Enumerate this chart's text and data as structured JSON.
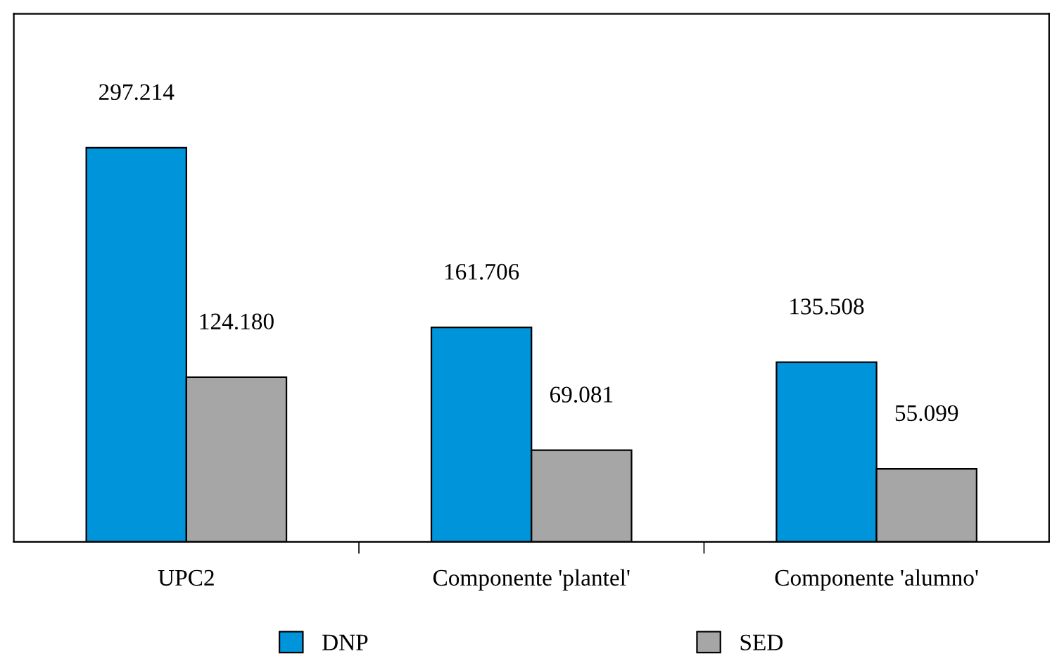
{
  "chart_data": {
    "type": "bar",
    "categories": [
      "UPC2",
      "Componente 'plantel'",
      "Componente 'alumno'"
    ],
    "series": [
      {
        "name": "DNP",
        "color": "#0095da",
        "values": [
          297.214,
          161.706,
          135.508
        ],
        "value_labels": [
          "297.214",
          "161.706",
          "135.508"
        ]
      },
      {
        "name": "SED",
        "color": "#a6a6a6",
        "values": [
          124.18,
          69.081,
          55.099
        ],
        "value_labels": [
          "124.180",
          "69.081",
          "55.099"
        ]
      }
    ],
    "legend": "bottom",
    "grid": false,
    "tick_labels": "x"
  }
}
